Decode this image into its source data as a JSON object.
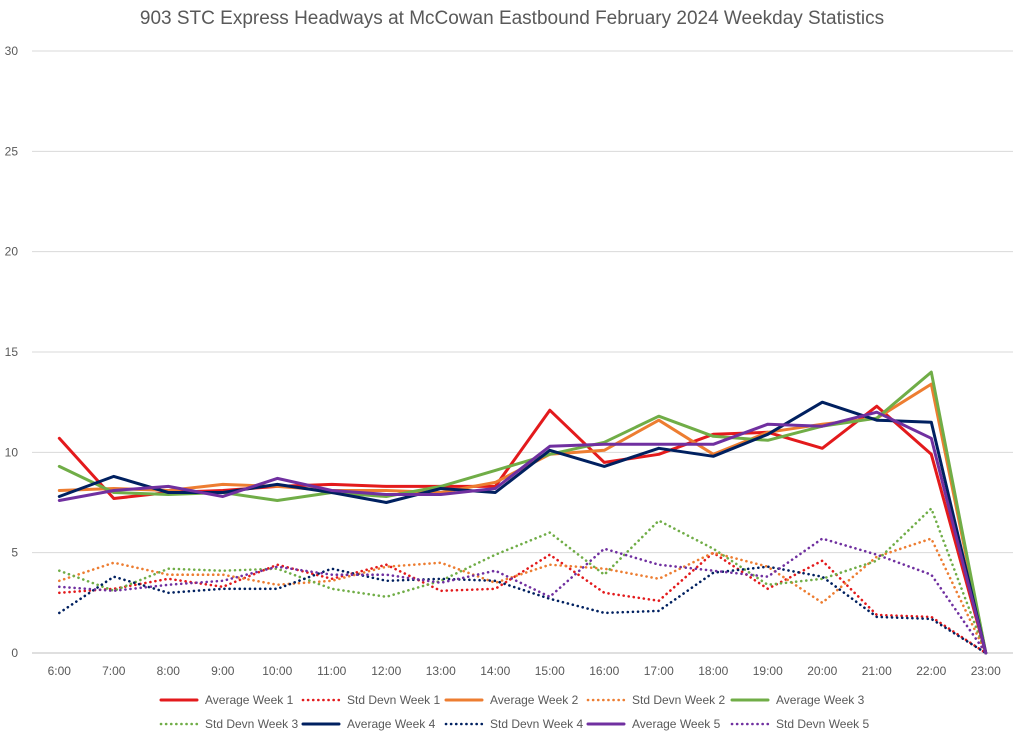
{
  "chart_data": {
    "type": "line",
    "title": "903 STC Express Headways at McCowan Eastbound February 2024 Weekday Statistics",
    "xlabel": "",
    "ylabel": "",
    "categories": [
      "6:00",
      "7:00",
      "8:00",
      "9:00",
      "10:00",
      "11:00",
      "12:00",
      "13:00",
      "14:00",
      "15:00",
      "16:00",
      "17:00",
      "18:00",
      "19:00",
      "20:00",
      "21:00",
      "22:00",
      "23:00"
    ],
    "ylim": [
      0,
      30
    ],
    "yticks": [
      "0",
      "5",
      "10",
      "15",
      "20",
      "25",
      "30"
    ],
    "grid": true,
    "legend_position": "bottom",
    "series": [
      {
        "name": "Average Week 1",
        "color": "#e31a1c",
        "style": "solid",
        "values": [
          10.7,
          7.7,
          8.0,
          8.1,
          8.3,
          8.4,
          8.3,
          8.3,
          8.3,
          12.1,
          9.5,
          9.9,
          10.9,
          11.0,
          10.2,
          12.3,
          9.9,
          0
        ]
      },
      {
        "name": "Std Devn Week 1",
        "color": "#e31a1c",
        "style": "dotted",
        "values": [
          3.0,
          3.2,
          3.7,
          3.3,
          4.4,
          3.7,
          4.4,
          3.1,
          3.2,
          4.9,
          3.0,
          2.6,
          5.0,
          3.2,
          4.6,
          1.9,
          1.8,
          0
        ]
      },
      {
        "name": "Average Week 2",
        "color": "#ed7d31",
        "style": "solid",
        "values": [
          8.1,
          8.2,
          8.1,
          8.4,
          8.3,
          8.1,
          8.1,
          8.0,
          8.5,
          9.9,
          10.1,
          11.6,
          9.9,
          11.0,
          11.4,
          11.7,
          13.4,
          0
        ]
      },
      {
        "name": "Std Devn Week 2",
        "color": "#ed7d31",
        "style": "dotted",
        "values": [
          3.6,
          4.5,
          3.9,
          3.9,
          3.4,
          3.6,
          4.3,
          4.5,
          3.5,
          4.4,
          4.2,
          3.7,
          5.0,
          4.3,
          2.5,
          4.8,
          5.7,
          0
        ]
      },
      {
        "name": "Average Week 3",
        "color": "#70ad47",
        "style": "solid",
        "values": [
          9.3,
          8.0,
          7.9,
          8.0,
          7.6,
          8.0,
          7.8,
          8.3,
          9.1,
          9.9,
          10.5,
          11.8,
          10.8,
          10.6,
          11.3,
          11.7,
          14.0,
          0
        ]
      },
      {
        "name": "Std Devn Week 3",
        "color": "#70ad47",
        "style": "dotted",
        "values": [
          4.1,
          3.1,
          4.2,
          4.1,
          4.2,
          3.2,
          2.8,
          3.6,
          4.9,
          6.0,
          3.9,
          6.6,
          5.2,
          3.4,
          3.7,
          4.6,
          7.2,
          0
        ]
      },
      {
        "name": "Average Week 4",
        "color": "#002060",
        "style": "solid",
        "values": [
          7.8,
          8.8,
          8.0,
          8.0,
          8.4,
          8.0,
          7.5,
          8.2,
          8.0,
          10.1,
          9.3,
          10.2,
          9.8,
          10.9,
          12.5,
          11.6,
          11.5,
          0
        ]
      },
      {
        "name": "Std Devn Week 4",
        "color": "#002060",
        "style": "dotted",
        "values": [
          2.0,
          3.8,
          3.0,
          3.2,
          3.2,
          4.2,
          3.6,
          3.7,
          3.6,
          2.7,
          2.0,
          2.1,
          4.0,
          4.3,
          3.8,
          1.8,
          1.7,
          0
        ]
      },
      {
        "name": "Average Week 5",
        "color": "#7030a0",
        "style": "solid",
        "values": [
          7.6,
          8.1,
          8.3,
          7.8,
          8.7,
          8.1,
          7.9,
          7.9,
          8.2,
          10.3,
          10.4,
          10.4,
          10.4,
          11.4,
          11.3,
          12.0,
          10.7,
          0
        ]
      },
      {
        "name": "Std Devn Week 5",
        "color": "#7030a0",
        "style": "dotted",
        "values": [
          3.3,
          3.1,
          3.4,
          3.6,
          4.3,
          3.9,
          3.9,
          3.5,
          4.1,
          2.8,
          5.2,
          4.4,
          4.1,
          3.8,
          5.7,
          4.9,
          3.9,
          0
        ]
      }
    ]
  }
}
